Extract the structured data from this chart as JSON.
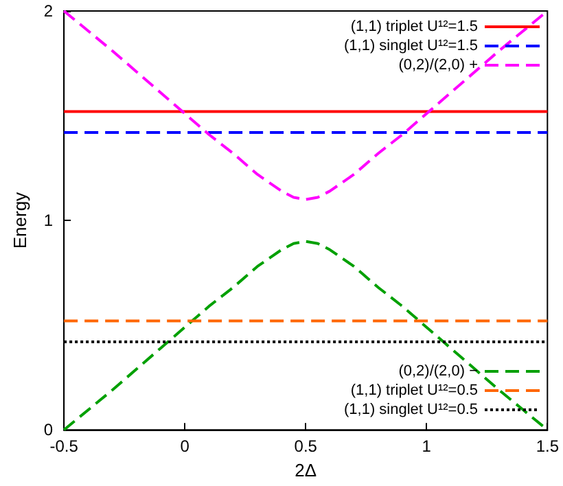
{
  "chart_data": {
    "type": "line",
    "xlabel": "2Δ",
    "ylabel": "Energy",
    "xlim": [
      -0.5,
      1.5
    ],
    "xticks": [
      -0.5,
      0,
      0.5,
      1,
      1.5
    ],
    "ylim": [
      0,
      2
    ],
    "yticks": [
      0,
      1,
      2
    ],
    "grid": false,
    "legend": "right",
    "marker": "none",
    "x": [
      -0.5,
      -0.3,
      -0.1,
      0.1,
      0.2,
      0.3,
      0.4,
      0.45,
      0.5,
      0.55,
      0.6,
      0.7,
      0.8,
      0.9,
      1.1,
      1.3,
      1.5
    ],
    "series": [
      {
        "name": "(1,1) triplet U¹²=1.5",
        "color": "#ff0000",
        "line_style": "solid",
        "values": [
          1.52,
          1.52,
          1.52,
          1.52,
          1.52,
          1.52,
          1.52,
          1.52,
          1.52,
          1.52,
          1.52,
          1.52,
          1.52,
          1.52,
          1.52,
          1.52,
          1.52
        ]
      },
      {
        "name": "(1,1) singlet U¹²=1.5",
        "color": "#0000ff",
        "line_style": "dashed",
        "values": [
          1.42,
          1.42,
          1.42,
          1.42,
          1.42,
          1.42,
          1.42,
          1.42,
          1.42,
          1.42,
          1.42,
          1.42,
          1.42,
          1.42,
          1.42,
          1.42,
          1.42
        ]
      },
      {
        "name": "(0,2)/(2,0) +",
        "color": "#ff00ff",
        "line_style": "dashed",
        "values": [
          2.0,
          1.81,
          1.61,
          1.41,
          1.32,
          1.22,
          1.14,
          1.11,
          1.1,
          1.11,
          1.14,
          1.22,
          1.32,
          1.41,
          1.61,
          1.81,
          2.0
        ]
      },
      {
        "name": "(0,2)/(2,0) −",
        "color": "#00a000",
        "line_style": "dashed",
        "values": [
          0.0,
          0.19,
          0.39,
          0.59,
          0.68,
          0.78,
          0.86,
          0.89,
          0.9,
          0.89,
          0.86,
          0.78,
          0.68,
          0.59,
          0.39,
          0.19,
          0.0
        ]
      },
      {
        "name": "(1,1) triplet U¹²=0.5",
        "color": "#ff6600",
        "line_style": "dashed",
        "values": [
          0.52,
          0.52,
          0.52,
          0.52,
          0.52,
          0.52,
          0.52,
          0.52,
          0.52,
          0.52,
          0.52,
          0.52,
          0.52,
          0.52,
          0.52,
          0.52,
          0.52
        ]
      },
      {
        "name": "(1,1) singlet U¹²=0.5",
        "color": "#000000",
        "line_style": "dotted",
        "values": [
          0.42,
          0.42,
          0.42,
          0.42,
          0.42,
          0.42,
          0.42,
          0.42,
          0.42,
          0.42,
          0.42,
          0.42,
          0.42,
          0.42,
          0.42,
          0.42,
          0.42
        ]
      }
    ]
  }
}
